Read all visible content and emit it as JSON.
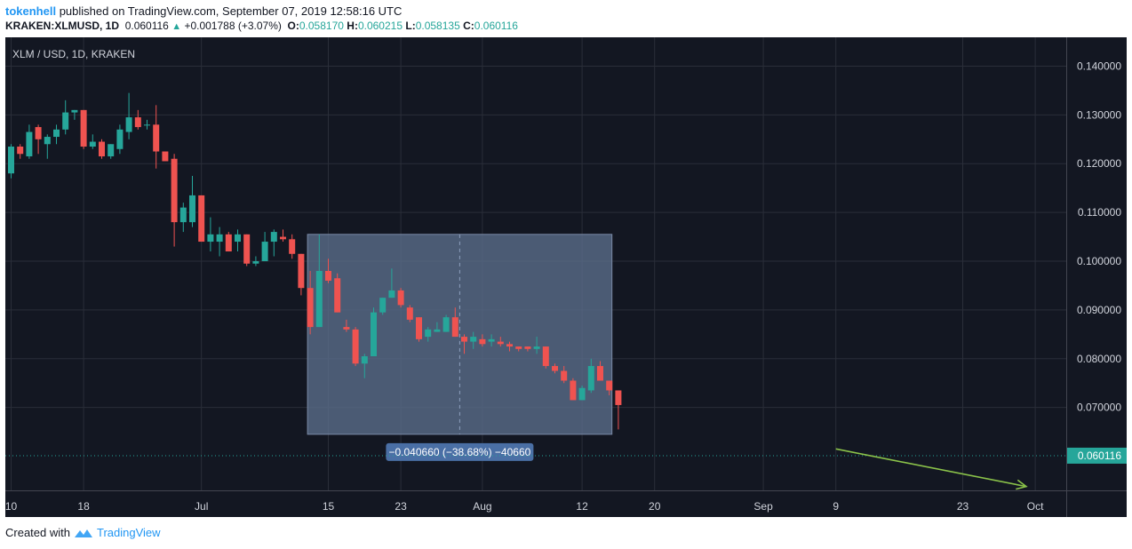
{
  "header": {
    "author": "tokenhell",
    "published_text": "published on TradingView.com, September 07, 2019 12:58:16 UTC",
    "symbol": "KRAKEN:XLMUSD, 1D",
    "last": "0.060116",
    "change": "+0.001788 (+3.07%)",
    "o_label": "O:",
    "o_value": "0.058170",
    "h_label": "H:",
    "h_value": "0.060215",
    "l_label": "L:",
    "l_value": "0.058135",
    "c_label": "C:",
    "c_value": "0.060116"
  },
  "footer": {
    "created_with": "Created with",
    "brand": "TradingView"
  },
  "chart_data": {
    "type": "candlestick",
    "legend_text": "XLM / USD, 1D, KRAKEN",
    "y_ticks": [
      "0.140000",
      "0.130000",
      "0.120000",
      "0.110000",
      "0.100000",
      "0.090000",
      "0.080000",
      "0.070000"
    ],
    "ylim": [
      0.053,
      0.145
    ],
    "x_ticks": [
      {
        "label": "10",
        "index": 0
      },
      {
        "label": "18",
        "index": 8
      },
      {
        "label": "Jul",
        "index": 21
      },
      {
        "label": "15",
        "index": 35
      },
      {
        "label": "23",
        "index": 43
      },
      {
        "label": "Aug",
        "index": 52
      },
      {
        "label": "12",
        "index": 63
      },
      {
        "label": "20",
        "index": 71
      },
      {
        "label": "Sep",
        "index": 83
      },
      {
        "label": "9",
        "index": 91
      },
      {
        "label": "23",
        "index": 105
      },
      {
        "label": "Oct",
        "index": 113
      }
    ],
    "last_price_label": "0.060116",
    "last_price": 0.060116,
    "measure": {
      "start_index": 33,
      "end_index": 66,
      "top": 0.1055,
      "bottom": 0.0645,
      "label": "−0.040660 (−38.68%) −40660"
    },
    "trend_arrow": {
      "start_index": 91,
      "start_price": 0.0615,
      "end_index": 112,
      "end_price": 0.0538
    },
    "colors": {
      "up": "#26a69a",
      "down": "#ef5350",
      "background": "#131722",
      "grid": "#2a2e39",
      "text": "#d1d4dc",
      "measure": "#5b6e8c",
      "arrow": "#8bc34a"
    },
    "candles": [
      [
        0.118,
        0.124,
        0.117,
        0.1235
      ],
      [
        0.1235,
        0.124,
        0.121,
        0.122
      ],
      [
        0.1215,
        0.128,
        0.121,
        0.1265
      ],
      [
        0.1275,
        0.128,
        0.122,
        0.125
      ],
      [
        0.124,
        0.126,
        0.121,
        0.1255
      ],
      [
        0.1255,
        0.128,
        0.124,
        0.127
      ],
      [
        0.127,
        0.133,
        0.126,
        0.1305
      ],
      [
        0.1305,
        0.131,
        0.129,
        0.131
      ],
      [
        0.131,
        0.131,
        0.123,
        0.1235
      ],
      [
        0.1235,
        0.126,
        0.123,
        0.1245
      ],
      [
        0.1245,
        0.125,
        0.121,
        0.1215
      ],
      [
        0.1215,
        0.124,
        0.121,
        0.124
      ],
      [
        0.123,
        0.128,
        0.122,
        0.127
      ],
      [
        0.1265,
        0.1345,
        0.125,
        0.1295
      ],
      [
        0.1295,
        0.131,
        0.127,
        0.1275
      ],
      [
        0.128,
        0.129,
        0.127,
        0.128
      ],
      [
        0.128,
        0.132,
        0.119,
        0.1225
      ],
      [
        0.1225,
        0.1225,
        0.1205,
        0.1205
      ],
      [
        0.121,
        0.122,
        0.103,
        0.108
      ],
      [
        0.108,
        0.112,
        0.106,
        0.111
      ],
      [
        0.108,
        0.1175,
        0.107,
        0.1135
      ],
      [
        0.1135,
        0.1135,
        0.104,
        0.104
      ],
      [
        0.104,
        0.109,
        0.102,
        0.1055
      ],
      [
        0.104,
        0.107,
        0.101,
        0.1055
      ],
      [
        0.1055,
        0.106,
        0.102,
        0.102
      ],
      [
        0.104,
        0.1065,
        0.102,
        0.1055
      ],
      [
        0.1055,
        0.1055,
        0.099,
        0.0995
      ],
      [
        0.0995,
        0.101,
        0.099,
        0.1
      ],
      [
        0.1,
        0.106,
        0.1,
        0.104
      ],
      [
        0.104,
        0.1065,
        0.101,
        0.106
      ],
      [
        0.105,
        0.1065,
        0.104,
        0.1045
      ],
      [
        0.1045,
        0.1055,
        0.1005,
        0.1015
      ],
      [
        0.1015,
        0.1015,
        0.093,
        0.0945
      ],
      [
        0.0945,
        0.098,
        0.085,
        0.0865
      ],
      [
        0.0865,
        0.1055,
        0.0865,
        0.098
      ],
      [
        0.098,
        0.1005,
        0.0955,
        0.096
      ],
      [
        0.0965,
        0.0975,
        0.0895,
        0.0895
      ],
      [
        0.0865,
        0.088,
        0.0855,
        0.086
      ],
      [
        0.086,
        0.0865,
        0.0785,
        0.079
      ],
      [
        0.079,
        0.081,
        0.076,
        0.0805
      ],
      [
        0.0805,
        0.0905,
        0.0805,
        0.0895
      ],
      [
        0.0895,
        0.0925,
        0.089,
        0.0925
      ],
      [
        0.0925,
        0.0985,
        0.0925,
        0.094
      ],
      [
        0.094,
        0.0945,
        0.0905,
        0.091
      ],
      [
        0.0905,
        0.091,
        0.0875,
        0.088
      ],
      [
        0.0885,
        0.0885,
        0.0835,
        0.084
      ],
      [
        0.0845,
        0.0865,
        0.0835,
        0.086
      ],
      [
        0.0855,
        0.0875,
        0.0855,
        0.086
      ],
      [
        0.0855,
        0.089,
        0.0855,
        0.0885
      ],
      [
        0.0885,
        0.0905,
        0.0845,
        0.0845
      ],
      [
        0.0845,
        0.085,
        0.081,
        0.0835
      ],
      [
        0.0835,
        0.0855,
        0.082,
        0.0845
      ],
      [
        0.084,
        0.085,
        0.0825,
        0.083
      ],
      [
        0.0835,
        0.085,
        0.0825,
        0.084
      ],
      [
        0.0835,
        0.0845,
        0.0825,
        0.083
      ],
      [
        0.083,
        0.0835,
        0.0815,
        0.0825
      ],
      [
        0.0825,
        0.0825,
        0.0815,
        0.082
      ],
      [
        0.0825,
        0.0825,
        0.0815,
        0.082
      ],
      [
        0.082,
        0.0845,
        0.081,
        0.0825
      ],
      [
        0.0825,
        0.0825,
        0.078,
        0.0785
      ],
      [
        0.0785,
        0.079,
        0.077,
        0.0775
      ],
      [
        0.0775,
        0.0785,
        0.075,
        0.0755
      ],
      [
        0.0755,
        0.076,
        0.0715,
        0.0715
      ],
      [
        0.0715,
        0.0745,
        0.0715,
        0.074
      ],
      [
        0.0735,
        0.08,
        0.073,
        0.0785
      ],
      [
        0.0785,
        0.0795,
        0.0755,
        0.0755
      ],
      [
        0.0755,
        0.0755,
        0.0725,
        0.0735
      ],
      [
        0.0735,
        0.0735,
        0.0655,
        0.0705
      ]
    ]
  }
}
